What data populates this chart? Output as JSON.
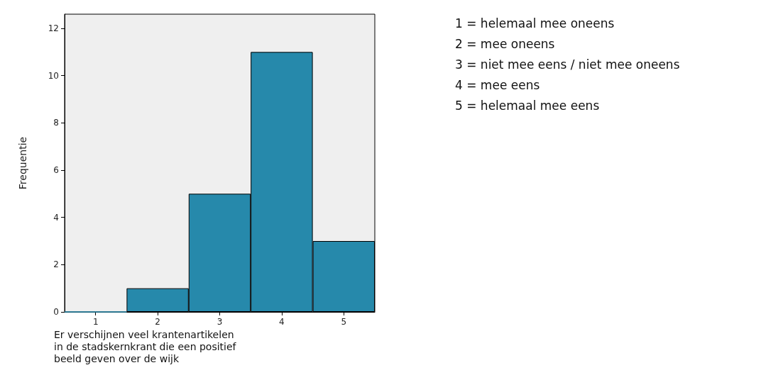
{
  "chart_data": {
    "type": "bar",
    "ylabel": "Frequentie",
    "xlabel": "Er verschijnen veel krantenartikelen in de stadskernkrant die een positief beeld geven over de wijk",
    "categories": [
      "1",
      "2",
      "3",
      "4",
      "5"
    ],
    "values": [
      0,
      1,
      5,
      11,
      3
    ],
    "color": "#2689ab",
    "ylim": [
      0,
      12.6
    ],
    "yticks": [
      0,
      2,
      4,
      6,
      8,
      10,
      12
    ],
    "grid": false,
    "annotations": [
      "1 = helemaal mee oneens",
      "2 = mee oneens",
      "3 = niet mee eens / niet mee oneens",
      "4 = mee eens",
      "5 = helemaal mee eens"
    ]
  }
}
